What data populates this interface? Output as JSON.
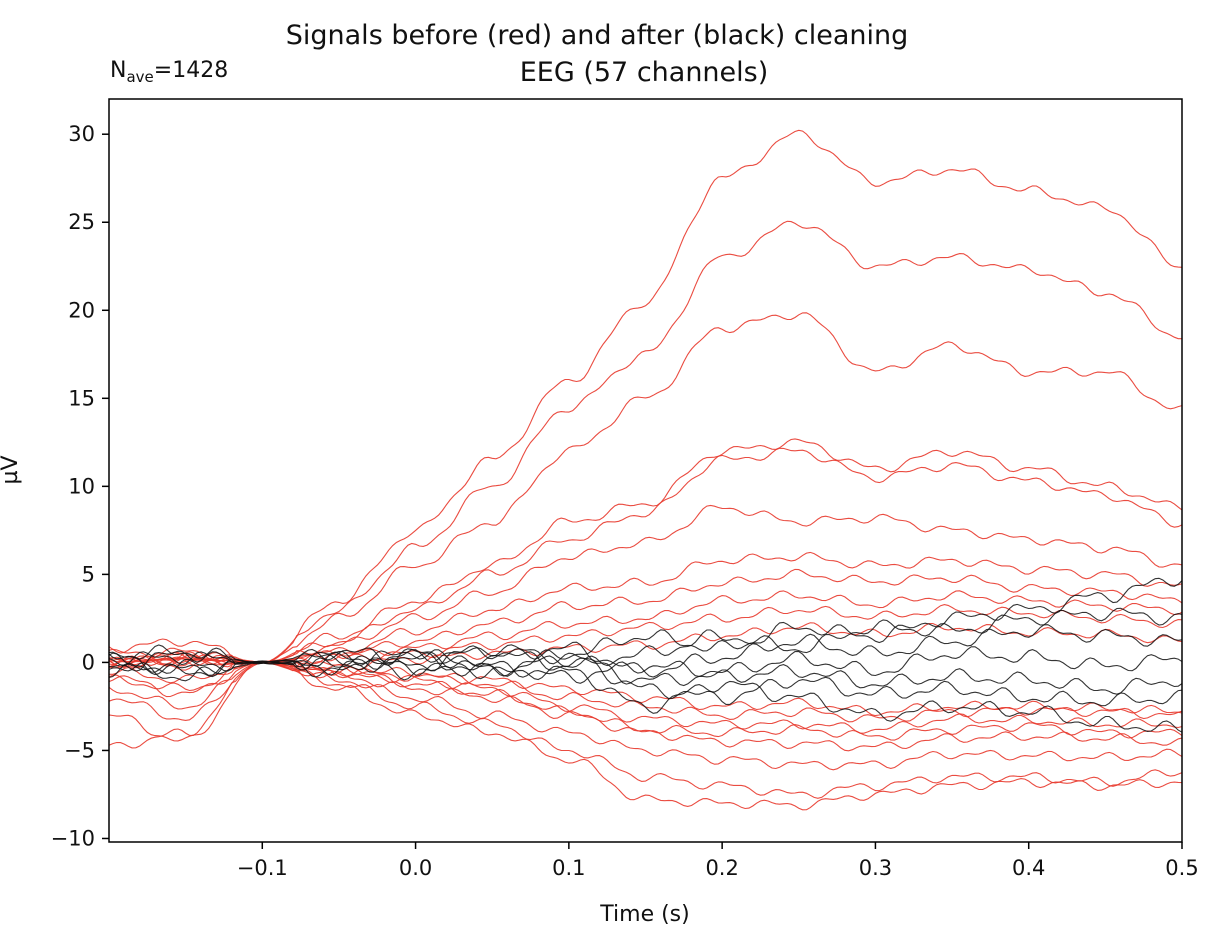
{
  "chart_data": {
    "type": "line",
    "title": "Signals before (red) and after (black) cleaning",
    "subtitle": "EEG (57 channels)",
    "annotation": {
      "prefix": "N",
      "subscript": "ave",
      "suffix": "=1428"
    },
    "xlabel": "Time (s)",
    "ylabel": "µV",
    "xlim": [
      -0.2,
      0.5
    ],
    "ylim": [
      -10.2,
      32
    ],
    "xticks": [
      -0.1,
      0.0,
      0.1,
      0.2,
      0.3,
      0.4,
      0.5
    ],
    "xtick_labels": [
      "−0.1",
      "0.0",
      "0.1",
      "0.2",
      "0.3",
      "0.4",
      "0.5"
    ],
    "yticks": [
      -10,
      -5,
      0,
      5,
      10,
      15,
      20,
      25,
      30
    ],
    "ytick_labels": [
      "−10",
      "−5",
      "0",
      "5",
      "10",
      "15",
      "20",
      "25",
      "30"
    ],
    "grid": false,
    "legend": "none",
    "colors": {
      "before": "#e8392c",
      "after": "#111111"
    },
    "sample_times": [
      -0.2,
      -0.15,
      -0.1,
      -0.05,
      0.0,
      0.05,
      0.1,
      0.15,
      0.2,
      0.25,
      0.3,
      0.35,
      0.4,
      0.45,
      0.5
    ],
    "series": [
      {
        "group": "before",
        "values": [
          0,
          0.3,
          0,
          3.5,
          7.5,
          11.5,
          16,
          20.5,
          27.5,
          30,
          27.3,
          28,
          26.8,
          25.8,
          22.5
        ]
      },
      {
        "group": "before",
        "values": [
          0,
          0.3,
          0,
          3,
          6.5,
          10,
          14.5,
          17.5,
          23,
          25,
          22.5,
          23,
          22.3,
          21,
          18.5
        ]
      },
      {
        "group": "before",
        "values": [
          0,
          0.2,
          0,
          2.5,
          5.5,
          8,
          12,
          15,
          19,
          19.8,
          16.5,
          18,
          16.5,
          16.5,
          14.3
        ]
      },
      {
        "group": "before",
        "values": [
          0,
          0.2,
          0,
          1.5,
          3.5,
          5.5,
          8,
          9,
          12,
          12.5,
          11,
          12,
          11,
          10,
          8.8
        ]
      },
      {
        "group": "before",
        "values": [
          0,
          0.2,
          0,
          1.2,
          3,
          5,
          7,
          8.5,
          11.5,
          12,
          10.5,
          11.2,
          10.3,
          9.5,
          7.9
        ]
      },
      {
        "group": "before",
        "values": [
          0,
          0.1,
          0,
          1,
          2.5,
          4,
          6,
          6.8,
          8.8,
          8,
          8.2,
          7.5,
          7,
          6.5,
          5.5
        ]
      },
      {
        "group": "before",
        "values": [
          0,
          0.1,
          0,
          0.6,
          1.8,
          3,
          4.2,
          4.5,
          5.8,
          6,
          5.5,
          5.8,
          5.3,
          5,
          4.3
        ]
      },
      {
        "group": "before",
        "values": [
          0,
          0.1,
          0,
          0.5,
          1.2,
          2.2,
          3.2,
          3.5,
          4.5,
          5,
          4.6,
          4.8,
          4.2,
          4,
          3.5
        ]
      },
      {
        "group": "before",
        "values": [
          0.5,
          0.6,
          0,
          0.4,
          0.8,
          1.5,
          2.2,
          2.5,
          3.5,
          3.8,
          3.3,
          3.8,
          3.5,
          3.2,
          3
        ]
      },
      {
        "group": "before",
        "values": [
          -0.3,
          0.5,
          0,
          0.3,
          0.5,
          1,
          1.5,
          2,
          2.5,
          3,
          2.6,
          3,
          2.8,
          2.5,
          2.2
        ]
      },
      {
        "group": "before",
        "values": [
          0.3,
          -0.2,
          0,
          -0.2,
          0.2,
          0.5,
          0.8,
          1,
          1.5,
          2,
          1.6,
          2,
          1.7,
          1.6,
          1.2
        ]
      },
      {
        "group": "before",
        "values": [
          -0.5,
          -1,
          0,
          -0.5,
          -0.8,
          -1,
          -1.5,
          -2,
          -2.5,
          -2.3,
          -2.8,
          -2.5,
          -2.5,
          -2.6,
          -2.8
        ]
      },
      {
        "group": "before",
        "values": [
          -1,
          -1.5,
          0,
          -0.5,
          -1,
          -1.5,
          -2.5,
          -3.2,
          -3.5,
          -3.5,
          -3.8,
          -3.2,
          -3.3,
          -3.5,
          -3.5
        ]
      },
      {
        "group": "before",
        "values": [
          -1.5,
          -2.5,
          0,
          -0.8,
          -1.5,
          -2,
          -3,
          -4,
          -4.5,
          -4.6,
          -4.8,
          -4.3,
          -4.2,
          -4.3,
          -4.6
        ]
      },
      {
        "group": "before",
        "values": [
          -2,
          -3.2,
          0,
          -1,
          -2,
          -3,
          -4,
          -5,
          -5.5,
          -5.8,
          -5.8,
          -5.2,
          -5.3,
          -5.4,
          -5.2
        ]
      },
      {
        "group": "before",
        "values": [
          -3,
          -4.5,
          0,
          -1.2,
          -2.5,
          -3.5,
          -5,
          -6.5,
          -7,
          -7.5,
          -7,
          -6.5,
          -6.5,
          -6.8,
          -6.2
        ]
      },
      {
        "group": "before",
        "values": [
          -4.8,
          -4,
          0,
          -1.5,
          -3,
          -4,
          -5.5,
          -7.8,
          -8,
          -8.1,
          -7.5,
          -7,
          -6.8,
          -7,
          -6.8
        ]
      },
      {
        "group": "before",
        "values": [
          0.8,
          1.2,
          0,
          -0.4,
          -0.6,
          -1.2,
          -2,
          -2.5,
          -3,
          -2.8,
          -3.2,
          -2.8,
          -2.7,
          -2.8,
          -3
        ]
      },
      {
        "group": "before",
        "values": [
          -0.8,
          -1.8,
          0,
          -0.6,
          -1.2,
          -1.8,
          -2.8,
          -3.8,
          -4,
          -3.8,
          -4.2,
          -3.8,
          -3.6,
          -4,
          -4
        ]
      },
      {
        "group": "after",
        "values": [
          0.3,
          -0.4,
          0,
          0.6,
          0.2,
          -0.5,
          0.5,
          1.5,
          0.8,
          2,
          1.5,
          2.5,
          3,
          3.8,
          4.8
        ]
      },
      {
        "group": "after",
        "values": [
          -0.3,
          0.5,
          0,
          -0.5,
          0.4,
          0.6,
          -0.2,
          0.5,
          1.5,
          0.8,
          2,
          1.8,
          2.5,
          2.8,
          2.5
        ]
      },
      {
        "group": "after",
        "values": [
          0.2,
          0.3,
          0,
          0.4,
          -0.3,
          0.3,
          0.8,
          -0.5,
          0.3,
          1.2,
          0.5,
          1.2,
          1.8,
          1.5,
          1.2
        ]
      },
      {
        "group": "after",
        "values": [
          -0.5,
          -0.2,
          0,
          0.3,
          -0.6,
          -0.2,
          -0.8,
          -0.2,
          -0.5,
          0.2,
          -0.5,
          0.5,
          0.3,
          -0.2,
          0.2
        ]
      },
      {
        "group": "after",
        "values": [
          0.1,
          -0.6,
          0,
          -0.3,
          0.5,
          -0.4,
          0.2,
          -1,
          -0.8,
          -0.5,
          -1.2,
          -0.8,
          -1,
          -1.5,
          -1
        ]
      },
      {
        "group": "after",
        "values": [
          0.4,
          0.6,
          0,
          0.2,
          -0.2,
          0.8,
          0.3,
          -1.5,
          -2,
          -1,
          -1.8,
          -1.5,
          -2,
          -2.2,
          -2
        ]
      },
      {
        "group": "after",
        "values": [
          -0.2,
          -0.8,
          0,
          -0.2,
          0.6,
          -0.6,
          -0.5,
          -2.5,
          -1.2,
          -2,
          -3,
          -2.5,
          -2.8,
          -3.5,
          -3.8
        ]
      }
    ]
  }
}
